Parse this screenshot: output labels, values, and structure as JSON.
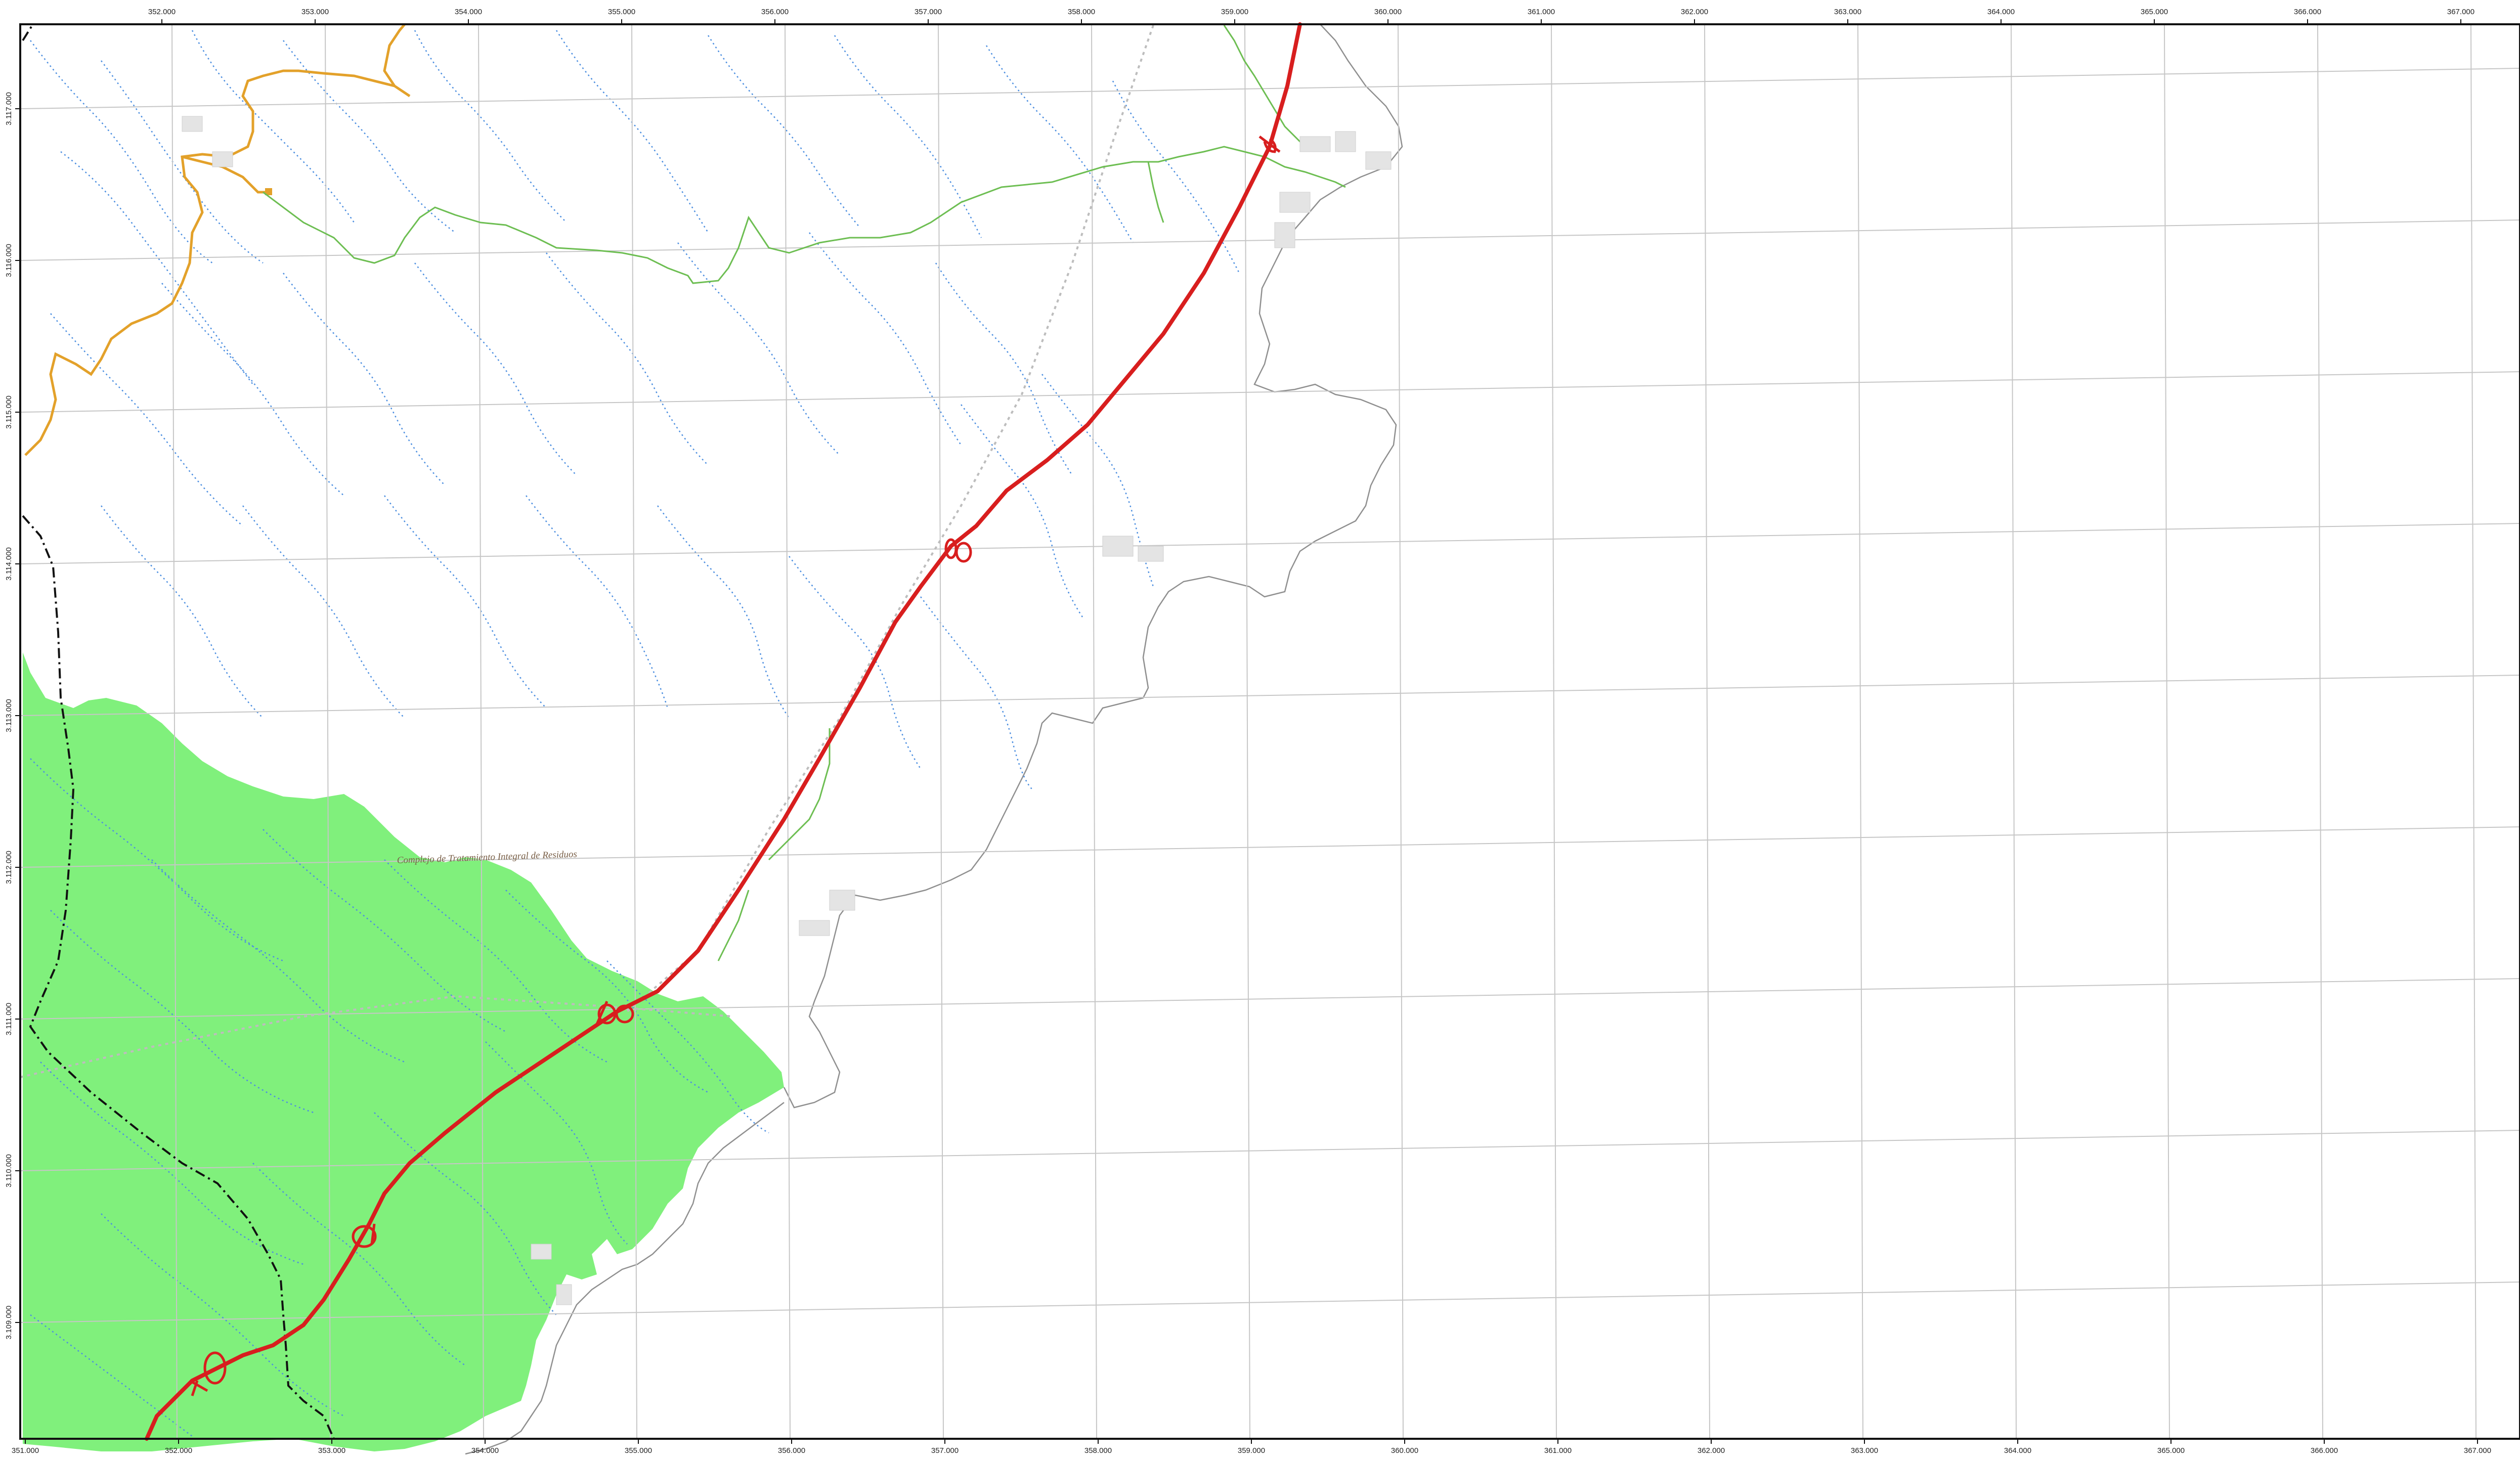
{
  "map": {
    "top_ticks": [
      "352.000",
      "353.000",
      "354.000",
      "355.000",
      "356.000",
      "357.000",
      "358.000",
      "359.000",
      "360.000",
      "361.000",
      "362.000",
      "363.000",
      "364.000",
      "365.000",
      "366.000",
      "367.000"
    ],
    "bottom_ticks": [
      "351.000",
      "352.000",
      "353.000",
      "354.000",
      "355.000",
      "356.000",
      "357.000",
      "358.000",
      "359.000",
      "360.000",
      "361.000",
      "362.000",
      "363.000",
      "364.000",
      "365.000",
      "366.000",
      "367.000"
    ],
    "left_ticks": [
      "3.117.000",
      "3.116.000",
      "3.115.000",
      "3.114.000",
      "3.113.000",
      "3.112.000",
      "3.111.000",
      "3.110.000",
      "3.109.000"
    ],
    "place_label": "Complejo de Tratamiento Integral de Residuos",
    "colors": {
      "protected_area": "#80f07c",
      "highway": "#d81e1e",
      "road": "#e3a12a",
      "secondary_road": "#6dbe52",
      "stream": "#4d8fe0",
      "coastline": "#8f8f8f",
      "grid": "#c6c6c6",
      "boundary": "#111111",
      "paths": "#bdbdbd"
    }
  }
}
